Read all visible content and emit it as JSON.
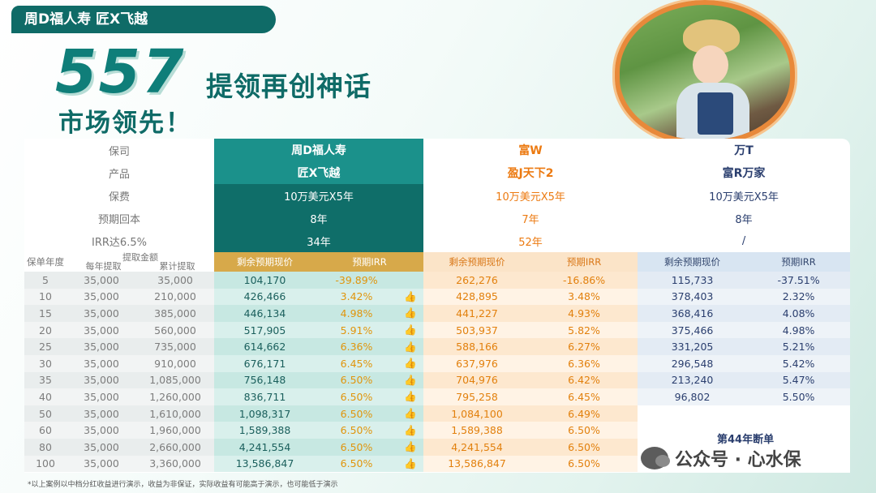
{
  "header": {
    "tagline": "周D福人寿  匠X飞越",
    "big_number": "557",
    "headline_1": "提领再创神话",
    "headline_2": "市场领先！"
  },
  "table": {
    "labels": {
      "company": "保司",
      "product": "产品",
      "premium": "保费",
      "breakeven": "预期回本",
      "irr": "IRR达6.5%",
      "policy_year": "保单年度",
      "withdrawal": "提取金额",
      "annual_withdrawal": "每年提取",
      "cumulative_withdrawal": "累计提取",
      "remaining_value": "剩余预期现价",
      "expected_irr": "预期IRR"
    },
    "insurers": [
      {
        "company": "周D福人寿",
        "product": "匠X飞越",
        "premium": "10万美元X5年",
        "breakeven": "8年",
        "irr_year": "34年"
      },
      {
        "company": "富W",
        "product": "盈J天下2",
        "premium": "10万美元X5年",
        "breakeven": "7年",
        "irr_year": "52年"
      },
      {
        "company": "万T",
        "product": "富R万家",
        "premium": "10万美元X5年",
        "breakeven": "8年",
        "irr_year": "/"
      }
    ],
    "rows": [
      {
        "year": "5",
        "annual": "35,000",
        "cum": "35,000",
        "zd_v": "104,170",
        "zd_i": "-39.89%",
        "zd_thumb": "",
        "fw_v": "262,276",
        "fw_i": "-16.86%",
        "wt_v": "115,733",
        "wt_i": "-37.51%"
      },
      {
        "year": "10",
        "annual": "35,000",
        "cum": "210,000",
        "zd_v": "426,466",
        "zd_i": "3.42%",
        "zd_thumb": "👍",
        "fw_v": "428,895",
        "fw_i": "3.48%",
        "wt_v": "378,403",
        "wt_i": "2.32%"
      },
      {
        "year": "15",
        "annual": "35,000",
        "cum": "385,000",
        "zd_v": "446,134",
        "zd_i": "4.98%",
        "zd_thumb": "👍",
        "fw_v": "441,227",
        "fw_i": "4.93%",
        "wt_v": "368,416",
        "wt_i": "4.08%"
      },
      {
        "year": "20",
        "annual": "35,000",
        "cum": "560,000",
        "zd_v": "517,905",
        "zd_i": "5.91%",
        "zd_thumb": "👍",
        "fw_v": "503,937",
        "fw_i": "5.82%",
        "wt_v": "375,466",
        "wt_i": "4.98%"
      },
      {
        "year": "25",
        "annual": "35,000",
        "cum": "735,000",
        "zd_v": "614,662",
        "zd_i": "6.36%",
        "zd_thumb": "👍",
        "fw_v": "588,166",
        "fw_i": "6.27%",
        "wt_v": "331,205",
        "wt_i": "5.21%"
      },
      {
        "year": "30",
        "annual": "35,000",
        "cum": "910,000",
        "zd_v": "676,171",
        "zd_i": "6.45%",
        "zd_thumb": "👍",
        "fw_v": "637,976",
        "fw_i": "6.36%",
        "wt_v": "296,548",
        "wt_i": "5.42%"
      },
      {
        "year": "35",
        "annual": "35,000",
        "cum": "1,085,000",
        "zd_v": "756,148",
        "zd_i": "6.50%",
        "zd_thumb": "👍",
        "fw_v": "704,976",
        "fw_i": "6.42%",
        "wt_v": "213,240",
        "wt_i": "5.47%"
      },
      {
        "year": "40",
        "annual": "35,000",
        "cum": "1,260,000",
        "zd_v": "836,711",
        "zd_i": "6.50%",
        "zd_thumb": "👍",
        "fw_v": "795,258",
        "fw_i": "6.45%",
        "wt_v": "96,802",
        "wt_i": "5.50%"
      },
      {
        "year": "50",
        "annual": "35,000",
        "cum": "1,610,000",
        "zd_v": "1,098,317",
        "zd_i": "6.50%",
        "zd_thumb": "👍",
        "fw_v": "1,084,100",
        "fw_i": "6.49%",
        "wt_v": "",
        "wt_i": ""
      },
      {
        "year": "60",
        "annual": "35,000",
        "cum": "1,960,000",
        "zd_v": "1,589,388",
        "zd_i": "6.50%",
        "zd_thumb": "👍",
        "fw_v": "1,589,388",
        "fw_i": "6.50%",
        "wt_v": "",
        "wt_i": ""
      },
      {
        "year": "80",
        "annual": "35,000",
        "cum": "2,660,000",
        "zd_v": "4,241,554",
        "zd_i": "6.50%",
        "zd_thumb": "👍",
        "fw_v": "4,241,554",
        "fw_i": "6.50%",
        "wt_v": "",
        "wt_i": ""
      },
      {
        "year": "100",
        "annual": "35,000",
        "cum": "3,360,000",
        "zd_v": "13,586,847",
        "zd_i": "6.50%",
        "zd_thumb": "👍",
        "fw_v": "13,586,847",
        "fw_i": "6.50%",
        "wt_v": "",
        "wt_i": ""
      }
    ],
    "lapse_note": "第44年断单"
  },
  "watermark": {
    "text": "公众号 · 心水保",
    "icon": "wechat-icon"
  },
  "footnote": "*以上案例以中档分红收益进行演示，收益为非保证，实际收益有可能高于演示，也可能低于演示",
  "colors": {
    "teal": "#1b918b",
    "orange": "#ec7a11",
    "navy": "#2a3e6e"
  }
}
